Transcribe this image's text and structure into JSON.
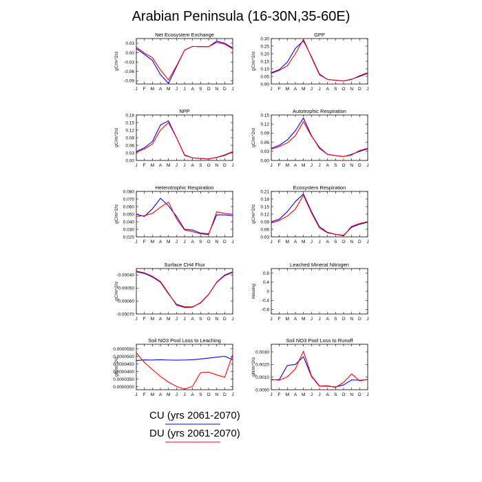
{
  "figure": {
    "title": "Arabian Peninsula (16-30N,35-60E)"
  },
  "legend": [
    {
      "name": "CU (yrs 2061-2070)",
      "color": "#0000ff"
    },
    {
      "name": "DU (yrs 2061-2070)",
      "color": "#ff0000"
    }
  ],
  "chart_data": [
    {
      "type": "line",
      "title": "Net Ecosystem Exchange",
      "ylabel": "gC/m^2/d",
      "x": [
        "J",
        "F",
        "M",
        "A",
        "M",
        "J",
        "J",
        "A",
        "S",
        "O",
        "N",
        "D",
        "J"
      ],
      "ylim": [
        -0.1,
        0.045
      ],
      "yticks": [
        0.03,
        0.0,
        -0.03,
        -0.06,
        -0.09
      ],
      "ytick_labels": [
        "0.03",
        "0.00",
        "-0.03",
        "-0.06",
        "-0.09"
      ],
      "series": [
        {
          "color": "#0000ff",
          "values": [
            0.013,
            -0.005,
            -0.025,
            -0.07,
            -0.098,
            -0.045,
            0.008,
            0.02,
            0.019,
            0.019,
            0.037,
            0.03,
            0.015
          ]
        },
        {
          "color": "#ff0000",
          "values": [
            0.017,
            -0.001,
            -0.016,
            -0.055,
            -0.087,
            -0.042,
            0.008,
            0.02,
            0.019,
            0.019,
            0.033,
            0.027,
            0.012
          ]
        }
      ]
    },
    {
      "type": "line",
      "title": "GPP",
      "ylabel": "gC/m^2/d",
      "x": [
        "J",
        "F",
        "M",
        "A",
        "M",
        "J",
        "J",
        "A",
        "S",
        "O",
        "N",
        "D",
        "J"
      ],
      "ylim": [
        0,
        0.3
      ],
      "yticks": [
        0,
        0.05,
        0.1,
        0.15,
        0.2,
        0.25,
        0.3
      ],
      "ytick_labels": [
        "0.00",
        "0.05",
        "0.10",
        "0.15",
        "0.20",
        "0.25",
        "0.30"
      ],
      "series": [
        {
          "color": "#0000ff",
          "values": [
            0.075,
            0.095,
            0.145,
            0.235,
            0.285,
            0.18,
            0.065,
            0.03,
            0.025,
            0.02,
            0.032,
            0.05,
            0.07
          ]
        },
        {
          "color": "#ff0000",
          "values": [
            0.07,
            0.09,
            0.12,
            0.2,
            0.295,
            0.175,
            0.06,
            0.03,
            0.025,
            0.02,
            0.03,
            0.055,
            0.075
          ]
        }
      ]
    },
    {
      "type": "line",
      "title": "NPP",
      "ylabel": "gC/m^2/d",
      "x": [
        "J",
        "F",
        "M",
        "A",
        "M",
        "J",
        "J",
        "A",
        "S",
        "O",
        "N",
        "D",
        "J"
      ],
      "ylim": [
        0,
        0.18
      ],
      "yticks": [
        0,
        0.03,
        0.06,
        0.09,
        0.12,
        0.15,
        0.18
      ],
      "ytick_labels": [
        "0.00",
        "0.03",
        "0.06",
        "0.09",
        "0.12",
        "0.15",
        "0.18"
      ],
      "series": [
        {
          "color": "#0000ff",
          "values": [
            0.035,
            0.05,
            0.075,
            0.14,
            0.157,
            0.09,
            0.022,
            0.01,
            0.008,
            0.006,
            0.012,
            0.02,
            0.033
          ]
        },
        {
          "color": "#ff0000",
          "values": [
            0.032,
            0.045,
            0.065,
            0.12,
            0.15,
            0.09,
            0.02,
            0.01,
            0.008,
            0.006,
            0.012,
            0.022,
            0.035
          ]
        }
      ]
    },
    {
      "type": "line",
      "title": "Autotrophic Respiration",
      "ylabel": "gC/m^2/d",
      "x": [
        "J",
        "F",
        "M",
        "A",
        "M",
        "J",
        "J",
        "A",
        "S",
        "O",
        "N",
        "D",
        "J"
      ],
      "ylim": [
        0,
        0.15
      ],
      "yticks": [
        0,
        0.03,
        0.06,
        0.09,
        0.12,
        0.15
      ],
      "ytick_labels": [
        "0.00",
        "0.03",
        "0.06",
        "0.09",
        "0.12",
        "0.15"
      ],
      "series": [
        {
          "color": "#0000ff",
          "values": [
            0.04,
            0.05,
            0.068,
            0.098,
            0.14,
            0.082,
            0.04,
            0.02,
            0.016,
            0.013,
            0.02,
            0.03,
            0.038
          ]
        },
        {
          "color": "#ff0000",
          "values": [
            0.037,
            0.046,
            0.058,
            0.082,
            0.128,
            0.08,
            0.043,
            0.02,
            0.016,
            0.013,
            0.018,
            0.033,
            0.04
          ]
        }
      ]
    },
    {
      "type": "line",
      "title": "Heterotrophic Respiration",
      "ylabel": "gC/m^2/d",
      "x": [
        "J",
        "F",
        "M",
        "A",
        "M",
        "J",
        "J",
        "A",
        "S",
        "O",
        "N",
        "D",
        "J"
      ],
      "ylim": [
        0.02,
        0.08
      ],
      "yticks": [
        0.02,
        0.03,
        0.04,
        0.05,
        0.06,
        0.07,
        0.08
      ],
      "ytick_labels": [
        "0.020",
        "0.030",
        "0.040",
        "0.050",
        "0.060",
        "0.070",
        "0.080"
      ],
      "series": [
        {
          "color": "#0000ff",
          "values": [
            0.05,
            0.047,
            0.057,
            0.071,
            0.061,
            0.047,
            0.03,
            0.029,
            0.025,
            0.024,
            0.049,
            0.049,
            0.048
          ]
        },
        {
          "color": "#ff0000",
          "values": [
            0.047,
            0.048,
            0.051,
            0.059,
            0.066,
            0.044,
            0.029,
            0.027,
            0.024,
            0.023,
            0.053,
            0.051,
            0.05
          ]
        }
      ]
    },
    {
      "type": "line",
      "title": "Ecosystem Respiration",
      "ylabel": "gC/m^2/d",
      "x": [
        "J",
        "F",
        "M",
        "A",
        "M",
        "J",
        "J",
        "A",
        "S",
        "O",
        "N",
        "D",
        "J"
      ],
      "ylim": [
        0.03,
        0.21
      ],
      "yticks": [
        0.03,
        0.06,
        0.09,
        0.12,
        0.15,
        0.18,
        0.21
      ],
      "ytick_labels": [
        "0.03",
        "0.06",
        "0.09",
        "0.12",
        "0.15",
        "0.18",
        "0.21"
      ],
      "series": [
        {
          "color": "#0000ff",
          "values": [
            0.09,
            0.1,
            0.13,
            0.17,
            0.2,
            0.13,
            0.07,
            0.048,
            0.04,
            0.036,
            0.068,
            0.08,
            0.088
          ]
        },
        {
          "color": "#ff0000",
          "values": [
            0.085,
            0.095,
            0.112,
            0.14,
            0.195,
            0.125,
            0.065,
            0.046,
            0.04,
            0.034,
            0.072,
            0.083,
            0.09
          ]
        }
      ]
    },
    {
      "type": "line",
      "title": "Surface CH4 Flux",
      "ylabel": "gC/m^2/d",
      "x": [
        "J",
        "F",
        "M",
        "A",
        "M",
        "J",
        "J",
        "A",
        "S",
        "O",
        "N",
        "D",
        "J"
      ],
      "ylim": [
        -0.0007,
        -0.00035
      ],
      "yticks": [
        -0.0004,
        -0.0005,
        -0.0006,
        -0.0007
      ],
      "ytick_labels": [
        "-0.00040",
        "-0.00050",
        "-0.00060",
        "-0.00070"
      ],
      "series": [
        {
          "color": "#0000ff",
          "values": [
            -0.000375,
            -0.000388,
            -0.000415,
            -0.000455,
            -0.000545,
            -0.000625,
            -0.000645,
            -0.000645,
            -0.000615,
            -0.00055,
            -0.000455,
            -0.0004,
            -0.000375
          ]
        },
        {
          "color": "#ff0000",
          "values": [
            -0.00037,
            -0.000383,
            -0.00041,
            -0.00045,
            -0.00054,
            -0.000632,
            -0.00065,
            -0.000648,
            -0.000612,
            -0.000548,
            -0.000458,
            -0.000405,
            -0.00038
          ]
        }
      ]
    },
    {
      "type": "line",
      "title": "Leached Mineral Nitrogen",
      "ylabel": "missing",
      "x": [
        "J",
        "F",
        "M",
        "A",
        "M",
        "J",
        "J",
        "A",
        "S",
        "O",
        "N",
        "D",
        "J"
      ],
      "ylim": [
        -1,
        1
      ],
      "yticks": [
        0.8,
        0.4,
        0,
        -0.4,
        -0.8
      ],
      "ytick_labels": [
        "0.8",
        "0.4",
        "0",
        "-0.4",
        "-0.8"
      ],
      "series": []
    },
    {
      "type": "line",
      "title": "Soil NO3 Pool Loss to Leaching",
      "ylabel": "gN/m^2/d",
      "x": [
        "J",
        "F",
        "M",
        "A",
        "M",
        "J",
        "J",
        "A",
        "S",
        "O",
        "N",
        "D",
        "J"
      ],
      "ylim": [
        2.8e-05,
        5.8e-05
      ],
      "yticks": [
        3e-05,
        3.5e-05,
        4e-05,
        4.5e-05,
        5e-05,
        5.5e-05
      ],
      "ytick_labels": [
        "0.0000300",
        "0.0000350",
        "0.0000400",
        "0.0000450",
        "0.0000500",
        "0.0000550"
      ],
      "series": [
        {
          "color": "#0000ff",
          "values": [
            4.73e-05,
            4.77e-05,
            4.76e-05,
            4.78e-05,
            4.76e-05,
            4.75e-05,
            4.76e-05,
            4.78e-05,
            4.83e-05,
            4.89e-05,
            4.95e-05,
            5.01e-05,
            4.78e-05
          ]
        },
        {
          "color": "#ff0000",
          "values": [
            5.23e-05,
            4.6e-05,
            4.13e-05,
            3.68e-05,
            3.3e-05,
            3.02e-05,
            2.84e-05,
            3.02e-05,
            3.93e-05,
            3.96e-05,
            3.78e-05,
            3.62e-05,
            5.12e-05
          ]
        }
      ]
    },
    {
      "type": "line",
      "title": "Soil NO3 Pool Loss to Runoff",
      "ylabel": "gN/m^2/d",
      "x": [
        "J",
        "F",
        "M",
        "A",
        "M",
        "J",
        "J",
        "A",
        "S",
        "O",
        "N",
        "D",
        "J"
      ],
      "ylim": [
        0,
        0.0036
      ],
      "yticks": [
        0,
        0.001,
        0.002,
        0.003
      ],
      "ytick_labels": [
        "0.0000",
        "0.0010",
        "0.0020",
        "0.0030"
      ],
      "series": [
        {
          "color": "#0000ff",
          "values": [
            0.00078,
            0.0008,
            0.00193,
            0.002,
            0.00262,
            0.00105,
            0.00028,
            0.00028,
            0.00022,
            0.00038,
            0.00078,
            0.00075,
            0.0008
          ]
        },
        {
          "color": "#ff0000",
          "values": [
            0.00082,
            0.00075,
            0.00102,
            0.00165,
            0.00305,
            0.0011,
            0.0003,
            0.00032,
            0.00018,
            0.00058,
            0.00125,
            0.0007,
            0.00082
          ]
        }
      ]
    }
  ]
}
